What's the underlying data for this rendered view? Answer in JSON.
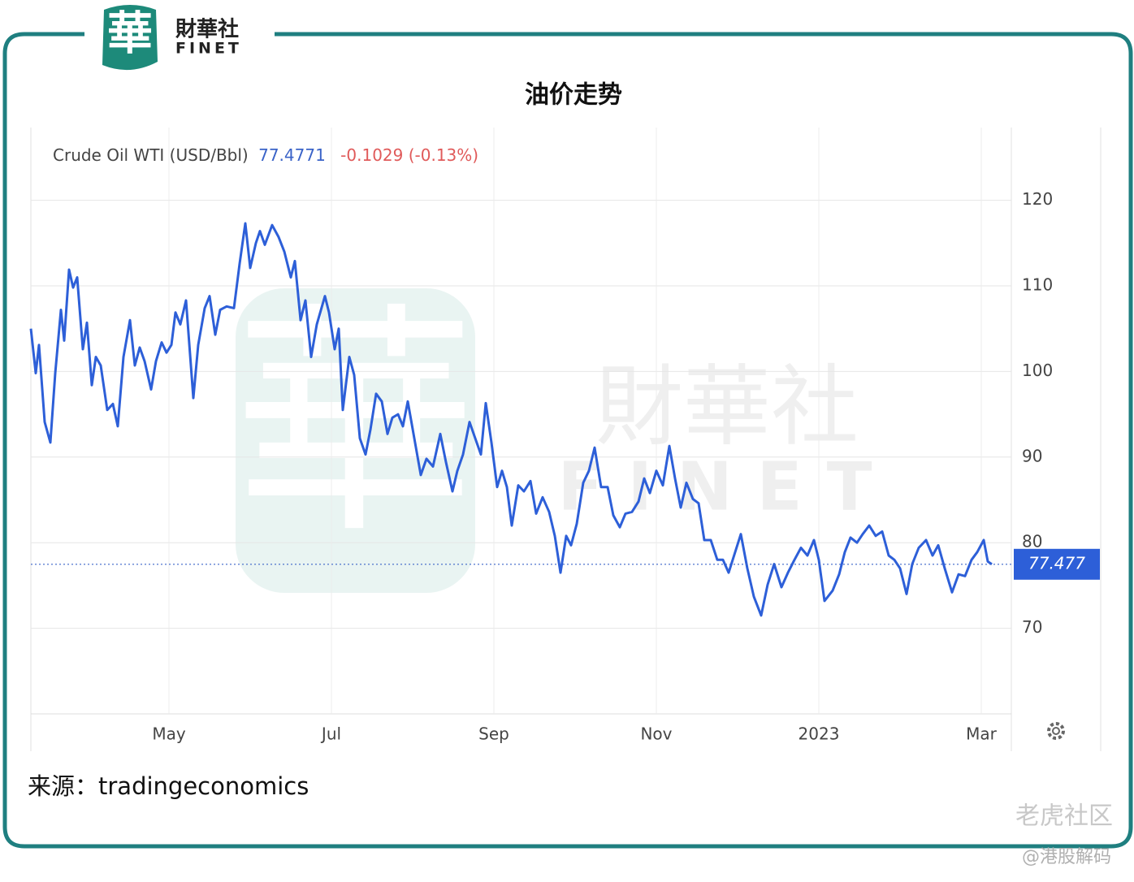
{
  "brand": {
    "name": "財華社",
    "latin": "FINET",
    "mark": "華"
  },
  "source": "来源：tradingeconomics",
  "watermarks": [
    "老虎社区",
    "@港股解码"
  ],
  "chart_data": {
    "type": "line",
    "title": "油价走势",
    "series_label": "Crude Oil WTI (USD/Bbl)",
    "change": "-0.1029 (-0.13%)",
    "last_price": {
      "value": 77.4771,
      "label": "77.477"
    },
    "grid": true,
    "xlim": [
      3.3,
      15.37
    ],
    "xticks": [
      {
        "value": 5,
        "label": "May"
      },
      {
        "value": 7,
        "label": "Jul"
      },
      {
        "value": 9,
        "label": "Sep"
      },
      {
        "value": 11,
        "label": "Nov"
      },
      {
        "value": 13,
        "label": "2023"
      },
      {
        "value": 15,
        "label": "Mar"
      }
    ],
    "ylim": [
      60,
      128.5
    ],
    "yticks": [
      70,
      80,
      90,
      100,
      110,
      120
    ],
    "series": [
      {
        "name": "Crude Oil WTI",
        "color": "#2d5fd8",
        "x": [
          3.3,
          3.36,
          3.4,
          3.47,
          3.54,
          3.6,
          3.67,
          3.71,
          3.77,
          3.82,
          3.87,
          3.94,
          3.99,
          4.05,
          4.1,
          4.16,
          4.24,
          4.31,
          4.37,
          4.44,
          4.52,
          4.58,
          4.64,
          4.7,
          4.78,
          4.84,
          4.91,
          4.97,
          5.03,
          5.08,
          5.14,
          5.21,
          5.3,
          5.36,
          5.44,
          5.5,
          5.57,
          5.63,
          5.71,
          5.8,
          5.87,
          5.94,
          6.0,
          6.07,
          6.12,
          6.18,
          6.27,
          6.35,
          6.42,
          6.5,
          6.55,
          6.62,
          6.68,
          6.75,
          6.82,
          6.92,
          6.97,
          7.04,
          7.09,
          7.14,
          7.22,
          7.28,
          7.35,
          7.42,
          7.48,
          7.55,
          7.62,
          7.69,
          7.75,
          7.82,
          7.88,
          7.94,
          8.02,
          8.1,
          8.17,
          8.25,
          8.34,
          8.41,
          8.49,
          8.55,
          8.62,
          8.7,
          8.77,
          8.84,
          8.9,
          8.97,
          9.04,
          9.1,
          9.16,
          9.22,
          9.3,
          9.37,
          9.45,
          9.52,
          9.6,
          9.68,
          9.75,
          9.82,
          9.89,
          9.95,
          10.02,
          10.1,
          10.17,
          10.24,
          10.32,
          10.4,
          10.47,
          10.55,
          10.62,
          10.7,
          10.78,
          10.85,
          10.92,
          11.0,
          11.08,
          11.16,
          11.23,
          11.3,
          11.37,
          11.45,
          11.52,
          11.59,
          11.67,
          11.75,
          11.82,
          11.89,
          11.97,
          12.04,
          12.12,
          12.2,
          12.29,
          12.37,
          12.45,
          12.54,
          12.62,
          12.7,
          12.78,
          12.86,
          12.94,
          13.0,
          13.07,
          13.17,
          13.25,
          13.32,
          13.39,
          13.47,
          13.54,
          13.62,
          13.7,
          13.78,
          13.86,
          13.93,
          14.0,
          14.08,
          14.15,
          14.23,
          14.32,
          14.4,
          14.47,
          14.55,
          14.64,
          14.72,
          14.8,
          14.88,
          14.95,
          15.03,
          15.08,
          15.13
        ],
        "values": [
          105.0,
          99.8,
          103.1,
          94.1,
          91.7,
          99.8,
          107.2,
          103.6,
          111.9,
          109.8,
          111.0,
          102.6,
          105.7,
          98.4,
          101.7,
          100.7,
          95.5,
          96.2,
          93.6,
          101.7,
          106.0,
          100.7,
          102.8,
          101.2,
          97.9,
          101.2,
          103.4,
          102.2,
          103.1,
          106.9,
          105.5,
          108.3,
          96.9,
          103.1,
          107.4,
          108.8,
          104.3,
          107.2,
          107.6,
          107.4,
          112.6,
          117.3,
          112.1,
          115.0,
          116.4,
          114.8,
          117.1,
          115.7,
          114.0,
          111.0,
          112.9,
          106.0,
          108.3,
          101.7,
          105.5,
          108.8,
          106.9,
          102.6,
          105.0,
          95.5,
          101.7,
          99.6,
          92.2,
          90.3,
          93.2,
          97.4,
          96.5,
          92.7,
          94.6,
          95.0,
          93.6,
          96.5,
          92.2,
          87.9,
          89.8,
          88.9,
          92.7,
          89.4,
          86.0,
          88.4,
          90.3,
          94.1,
          92.2,
          90.3,
          96.3,
          91.7,
          86.5,
          88.4,
          86.5,
          82.0,
          86.7,
          86.0,
          87.2,
          83.4,
          85.3,
          83.6,
          80.8,
          76.5,
          80.8,
          79.7,
          82.2,
          87.0,
          88.4,
          91.1,
          86.5,
          86.5,
          83.2,
          81.8,
          83.4,
          83.6,
          84.8,
          87.5,
          85.8,
          88.4,
          86.7,
          91.3,
          87.5,
          84.1,
          87.0,
          85.1,
          84.6,
          80.3,
          80.3,
          78.0,
          78.0,
          76.5,
          78.9,
          81.0,
          77.0,
          73.7,
          71.5,
          75.1,
          77.5,
          74.8,
          76.5,
          78.0,
          79.4,
          78.5,
          80.3,
          78.0,
          73.2,
          74.4,
          76.3,
          78.9,
          80.6,
          80.0,
          81.0,
          82.0,
          80.8,
          81.3,
          78.5,
          78.0,
          77.0,
          74.0,
          77.5,
          79.4,
          80.3,
          78.5,
          79.7,
          77.0,
          74.2,
          76.3,
          76.1,
          78.0,
          78.9,
          80.3,
          77.8,
          77.4771
        ]
      }
    ]
  }
}
